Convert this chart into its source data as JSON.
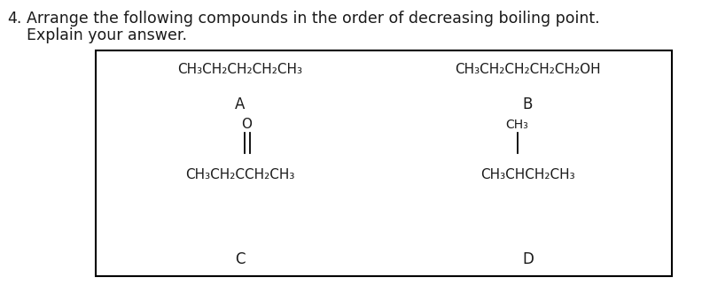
{
  "question_number": "4.",
  "question_text_line1": "Arrange the following compounds in the order of decreasing boiling point.",
  "question_text_line2": "Explain your answer.",
  "background_color": "#ffffff",
  "box_color": "#000000",
  "text_color": "#1a1a1a",
  "compound_A_formula": "CH₃CH₂CH₂CH₂CH₃",
  "compound_A_label": "A",
  "compound_B_formula": "CH₃CH₂CH₂CH₂CH₂OH",
  "compound_B_label": "B",
  "compound_C_main": "CH₃CH₂CCH₂CH₃",
  "compound_C_oxygen": "O",
  "compound_C_label": "C",
  "compound_D_main": "CH₃CHCH₂CH₃",
  "compound_D_branch": "CH₃",
  "compound_D_label": "D",
  "font_size_question": 12.5,
  "font_size_formula": 11,
  "font_size_label": 12,
  "font_size_branch": 10,
  "figsize": [
    7.92,
    3.22
  ],
  "dpi": 100
}
